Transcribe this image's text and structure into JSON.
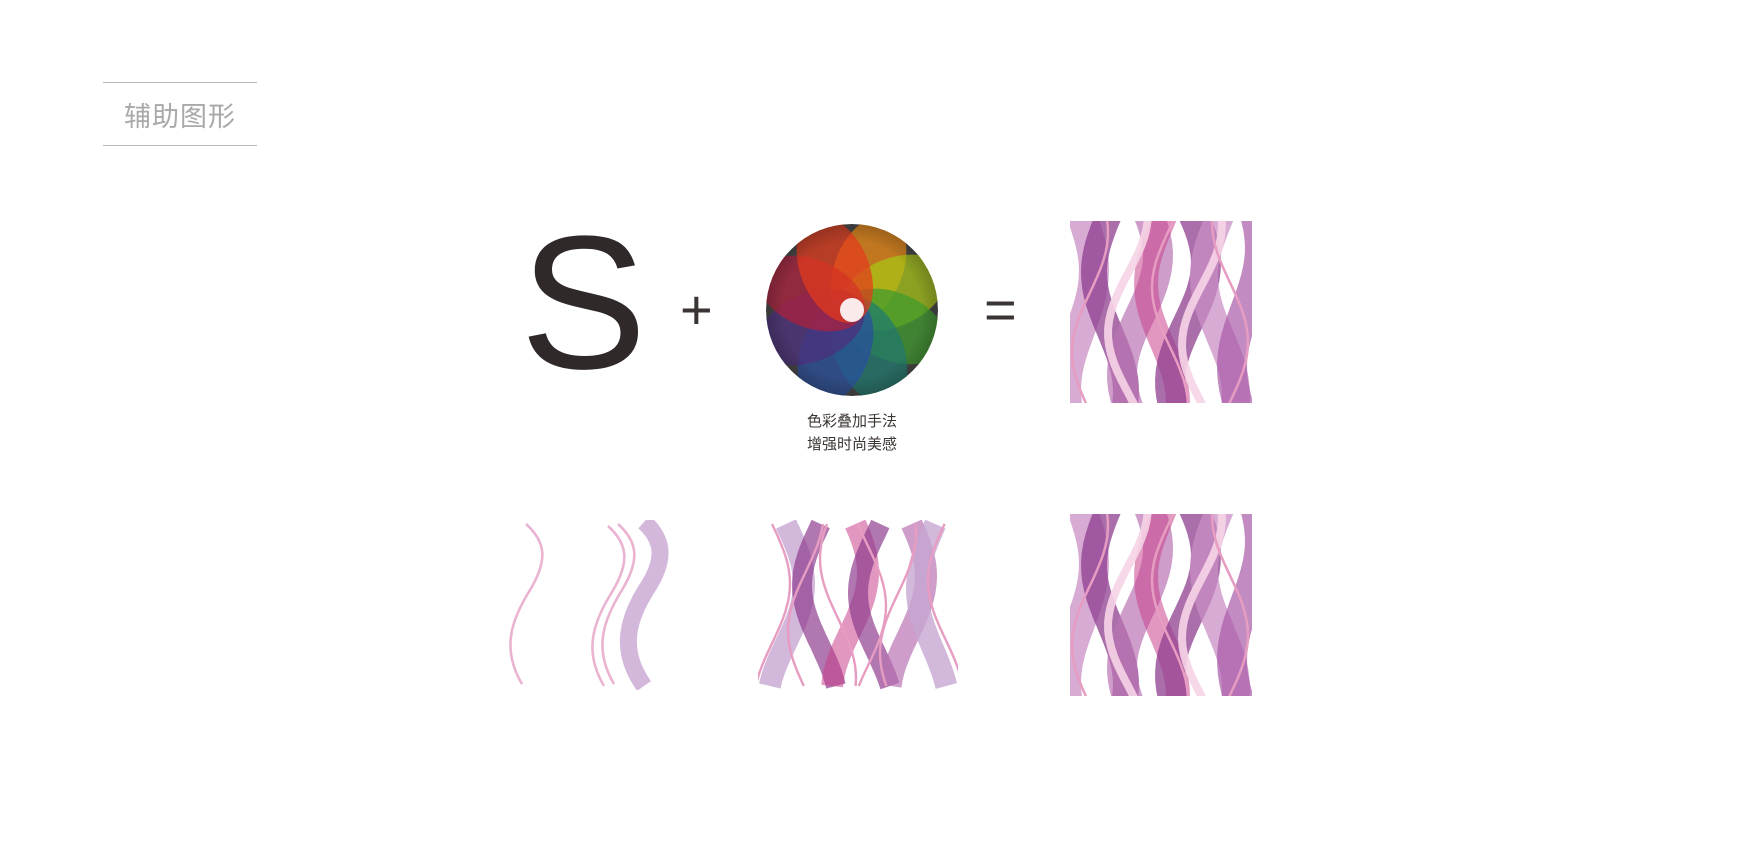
{
  "title": "辅助图形",
  "formula": {
    "letter": "S",
    "plus": "+",
    "equals": "="
  },
  "caption": {
    "line1": "色彩叠加手法",
    "line2": "增强时尚美感"
  },
  "colors": {
    "title_gray": "#a9a9a9",
    "rule_gray": "#b8b8b8",
    "dark": "#2f2a29",
    "pink": "#e79cc2",
    "lavender": "#c7a6d2",
    "purple": "#8e3d8f",
    "magenta": "#c9418a"
  },
  "icons": {
    "wheel": "color-wheel-icon",
    "pattern": "wave-pattern-icon"
  }
}
